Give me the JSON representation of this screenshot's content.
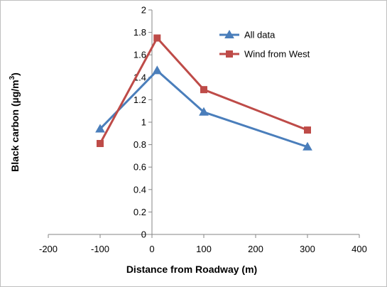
{
  "chart_data": {
    "type": "line",
    "title": "",
    "xlabel": "Distance from Roadway (m)",
    "ylabel_main": "Black carbon (µg/m",
    "ylabel_sup": "3",
    "ylabel_close": ")",
    "xlim": [
      -200,
      400
    ],
    "ylim": [
      0,
      2
    ],
    "x_ticks": [
      -200,
      -100,
      0,
      100,
      200,
      300,
      400
    ],
    "x_tick_labels": [
      "-200",
      "-100",
      "0",
      "100",
      "200",
      "300",
      "400"
    ],
    "y_ticks": [
      0,
      0.2,
      0.4,
      0.6,
      0.8,
      1,
      1.2,
      1.4,
      1.6,
      1.8,
      2
    ],
    "y_tick_labels": [
      "0",
      "0.2",
      "0.4",
      "0.6",
      "0.8",
      "1",
      "1.2",
      "1.4",
      "1.6",
      "1.8",
      "2"
    ],
    "grid": false,
    "legend_position": "top-right",
    "series": [
      {
        "name": "All data",
        "color": "#4a7ebb",
        "marker": "triangle",
        "x": [
          -100,
          10,
          100,
          300
        ],
        "y": [
          0.94,
          1.46,
          1.09,
          0.78
        ]
      },
      {
        "name": "Wind from West",
        "color": "#be4b48",
        "marker": "square",
        "x": [
          -100,
          10,
          100,
          300
        ],
        "y": [
          0.81,
          1.75,
          1.29,
          0.93
        ]
      }
    ]
  }
}
